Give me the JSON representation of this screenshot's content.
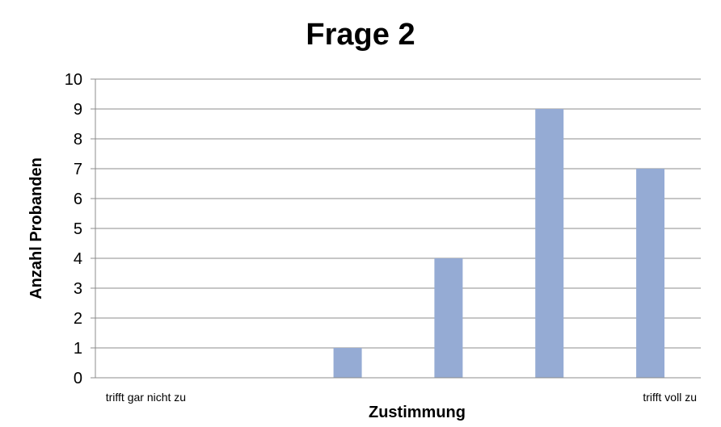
{
  "chart_data": {
    "type": "bar",
    "title": "Frage 2",
    "xlabel": "Zustimmung",
    "ylabel": "Anzahl Probanden",
    "categories": [
      "trifft gar nicht zu",
      "",
      "",
      "",
      "",
      "trifft voll zu"
    ],
    "values": [
      0,
      0,
      1,
      4,
      9,
      7
    ],
    "ylim": [
      0,
      10
    ],
    "yticks": [
      0,
      1,
      2,
      3,
      4,
      5,
      6,
      7,
      8,
      9,
      10
    ],
    "grid": true,
    "bar_color": "#95abd4",
    "grid_color": "#8c8c8c",
    "axis_color": "#8c8c8c"
  }
}
